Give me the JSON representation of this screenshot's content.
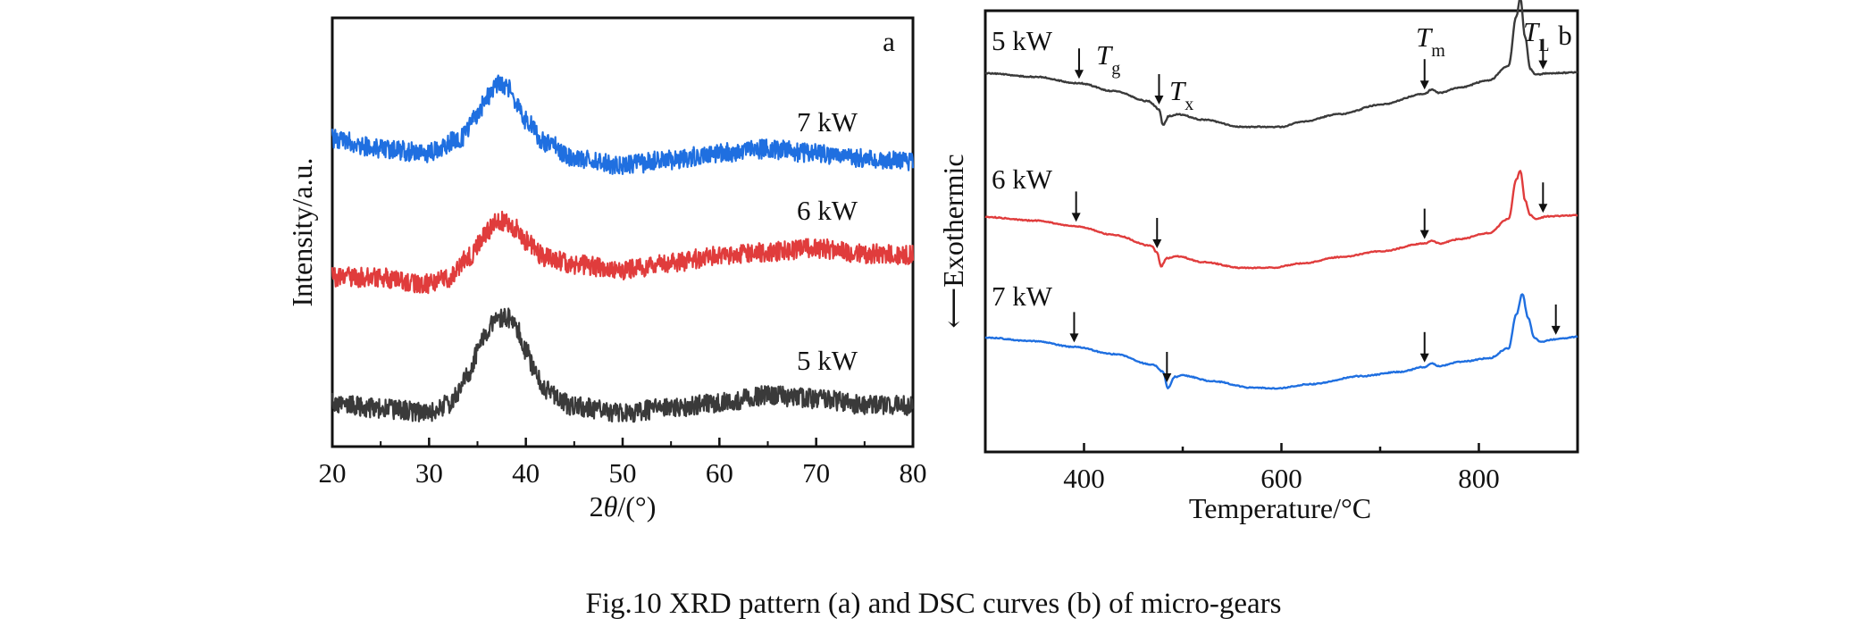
{
  "caption": "Fig.10  XRD pattern (a) and DSC curves (b) of micro-gears",
  "colors": {
    "5 kW": "#3a3a3a",
    "6 kW": "#e03c3c",
    "7 kW": "#1f6fe0",
    "axis": "#111111",
    "arrow": "#111111"
  },
  "chart_data": [
    {
      "type": "line",
      "panel": "a",
      "xlabel_prefix": "2",
      "xlabel_symbol": "θ",
      "xlabel_suffix": "/(°)",
      "ylabel": "Intensity/a.u.",
      "xlim": [
        20,
        80
      ],
      "xticks": [
        "20",
        "30",
        "40",
        "50",
        "60",
        "70",
        "80"
      ],
      "grid": false,
      "series": [
        {
          "name": "7 kW",
          "x": [
            20,
            25,
            30,
            33,
            35,
            36,
            37,
            38,
            39,
            40,
            42,
            45,
            50,
            55,
            60,
            65,
            70,
            75,
            80
          ],
          "y": [
            0.3,
            0.18,
            0.14,
            0.28,
            0.55,
            0.78,
            0.92,
            0.88,
            0.7,
            0.5,
            0.26,
            0.08,
            0.0,
            0.06,
            0.14,
            0.18,
            0.13,
            0.08,
            0.05
          ]
        },
        {
          "name": "6 kW",
          "x": [
            20,
            25,
            30,
            32,
            34,
            36,
            37,
            38,
            39,
            40,
            42,
            45,
            50,
            55,
            60,
            65,
            70,
            75,
            80
          ],
          "y": [
            0.08,
            0.07,
            0.0,
            0.06,
            0.3,
            0.58,
            0.72,
            0.7,
            0.62,
            0.48,
            0.3,
            0.22,
            0.16,
            0.24,
            0.32,
            0.36,
            0.4,
            0.34,
            0.32
          ]
        },
        {
          "name": "5 kW",
          "x": [
            20,
            25,
            30,
            32,
            34,
            35,
            36,
            37,
            38,
            39,
            40,
            41,
            42,
            45,
            50,
            55,
            60,
            65,
            70,
            75,
            80
          ],
          "y": [
            0.1,
            0.04,
            0.0,
            0.08,
            0.35,
            0.6,
            0.82,
            0.94,
            0.96,
            0.85,
            0.62,
            0.4,
            0.22,
            0.06,
            0.0,
            0.05,
            0.1,
            0.17,
            0.14,
            0.08,
            0.07
          ]
        }
      ]
    },
    {
      "type": "line",
      "panel": "b",
      "xlabel": "Temperature/°C",
      "ylabel": "Exothermic",
      "ylabel_arrow": "⟵",
      "xlim": [
        300,
        900
      ],
      "xticks": [
        "400",
        "600",
        "800"
      ],
      "grid": false,
      "annotations": {
        "Tg": [
          "T",
          "g"
        ],
        "Tx": [
          "T",
          "x"
        ],
        "Tm": [
          "T",
          "m"
        ],
        "TL": [
          "T",
          "L"
        ]
      },
      "series": [
        {
          "name": "5 kW",
          "x": [
            300,
            350,
            395,
            430,
            465,
            476,
            480,
            486,
            495,
            520,
            560,
            600,
            620,
            660,
            700,
            745,
            752,
            760,
            780,
            810,
            830,
            838,
            842,
            847,
            852,
            858,
            870,
            900
          ],
          "y": [
            0.0,
            -0.1,
            -0.28,
            -0.5,
            -0.78,
            -1.0,
            -1.45,
            -1.2,
            -1.15,
            -1.3,
            -1.5,
            -1.5,
            -1.36,
            -1.14,
            -0.88,
            -0.58,
            -0.46,
            -0.55,
            -0.4,
            -0.2,
            0.2,
            1.6,
            2.1,
            1.0,
            0.12,
            -0.04,
            0.0,
            0.02
          ]
        },
        {
          "name": "6 kW",
          "x": [
            300,
            350,
            392,
            430,
            468,
            474,
            478,
            484,
            495,
            520,
            560,
            590,
            620,
            660,
            700,
            745,
            752,
            760,
            780,
            810,
            830,
            838,
            842,
            847,
            852,
            858,
            870,
            900
          ],
          "y": [
            0.0,
            -0.1,
            -0.26,
            -0.5,
            -0.8,
            -1.0,
            -1.38,
            -1.15,
            -1.1,
            -1.26,
            -1.42,
            -1.42,
            -1.3,
            -1.12,
            -0.96,
            -0.74,
            -0.66,
            -0.74,
            -0.62,
            -0.45,
            -0.05,
            1.05,
            1.3,
            0.45,
            0.06,
            -0.05,
            0.02,
            0.05
          ]
        },
        {
          "name": "7 kW",
          "x": [
            300,
            350,
            390,
            430,
            470,
            480,
            485,
            492,
            500,
            530,
            570,
            595,
            630,
            680,
            720,
            745,
            752,
            760,
            780,
            810,
            830,
            838,
            844,
            850,
            856,
            862,
            875,
            900
          ],
          "y": [
            0.0,
            -0.1,
            -0.26,
            -0.46,
            -0.76,
            -0.95,
            -1.42,
            -1.1,
            -1.06,
            -1.22,
            -1.4,
            -1.42,
            -1.3,
            -1.08,
            -0.96,
            -0.82,
            -0.72,
            -0.8,
            -0.68,
            -0.58,
            -0.3,
            0.65,
            1.22,
            0.55,
            0.0,
            -0.12,
            -0.05,
            0.02
          ]
        }
      ],
      "arrows": [
        {
          "series": "5 kW",
          "points": [
            395,
            476,
            745,
            865
          ]
        },
        {
          "series": "6 kW",
          "points": [
            392,
            474,
            745,
            865
          ]
        },
        {
          "series": "7 kW",
          "points": [
            390,
            484,
            745,
            878
          ]
        }
      ]
    }
  ]
}
